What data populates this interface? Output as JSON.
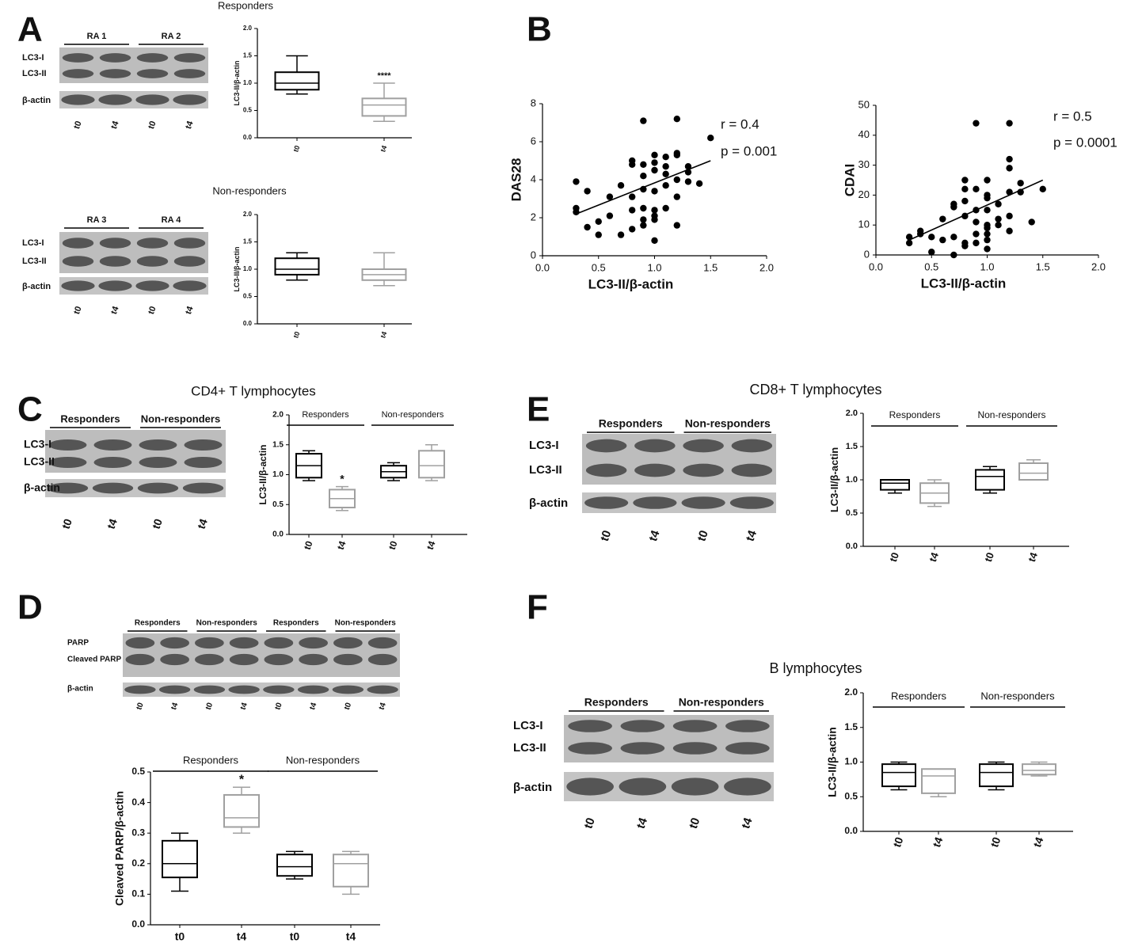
{
  "panel_letters": [
    "A",
    "B",
    "C",
    "D",
    "E",
    "F"
  ],
  "blots": [
    {
      "group_labels": [
        "RA 1",
        "RA 2"
      ],
      "row_labels": [
        "LC3-I",
        "LC3-II",
        "β-actin"
      ],
      "lane_labels": [
        "t0",
        "t4",
        "t0",
        "t4"
      ]
    },
    {
      "group_labels": [
        "RA 3",
        "RA 4"
      ],
      "row_labels": [
        "LC3-I",
        "LC3-II",
        "β-actin"
      ],
      "lane_labels": [
        "t0",
        "t4",
        "t0",
        "t4"
      ]
    },
    {
      "group_labels": [
        "Responders",
        "Non-responders"
      ],
      "row_labels": [
        "LC3-I",
        "LC3-II",
        "β-actin"
      ],
      "lane_labels": [
        "t0",
        "t4",
        "t0",
        "t4"
      ]
    },
    {
      "group_labels": [
        "Responders",
        "Non-responders"
      ],
      "row_labels": [
        "LC3-I",
        "LC3-II",
        "β-actin"
      ],
      "lane_labels": [
        "t0",
        "t4",
        "t0",
        "t4"
      ]
    },
    {
      "group_labels": [
        "Responders",
        "Non-responders",
        "Responders",
        "Non-responders"
      ],
      "row_labels": [
        "PARP",
        "Cleaved PARP",
        "β-actin"
      ],
      "lane_labels": [
        "t0",
        "t4",
        "t0",
        "t4",
        "t0",
        "t4",
        "t0",
        "t4"
      ]
    },
    {
      "group_labels": [
        "Responders",
        "Non-responders"
      ],
      "row_labels": [
        "LC3-I",
        "LC3-II",
        "β-actin"
      ],
      "lane_labels": [
        "t0",
        "t4",
        "t0",
        "t4"
      ]
    }
  ],
  "chart_data": [
    {
      "type": "box",
      "title": "Responders",
      "ylabel": "LC3-II/β-actin",
      "categories": [
        "t0",
        "t4"
      ],
      "boxes": [
        {
          "min": 0.8,
          "q1": 0.88,
          "median": 1.0,
          "q3": 1.2,
          "max": 1.5,
          "color": "#000000"
        },
        {
          "min": 0.3,
          "q1": 0.4,
          "median": 0.6,
          "q3": 0.72,
          "max": 1.0,
          "color": "#a0a0a0",
          "label": "****"
        }
      ],
      "ylim": [
        0,
        2
      ],
      "yticks": [
        {
          "value": 0,
          "label": "0.0"
        },
        {
          "value": 0.5,
          "label": "0.5"
        },
        {
          "value": 1,
          "label": "1.0"
        },
        {
          "value": 1.5,
          "label": "1.5"
        },
        {
          "value": 2,
          "label": "2.0"
        }
      ]
    },
    {
      "type": "box",
      "title": "Non-responders",
      "ylabel": "LC3-II/β-actin",
      "categories": [
        "t0",
        "t4"
      ],
      "boxes": [
        {
          "min": 0.8,
          "q1": 0.9,
          "median": 1.0,
          "q3": 1.2,
          "max": 1.3,
          "color": "#000000"
        },
        {
          "min": 0.7,
          "q1": 0.8,
          "median": 0.9,
          "q3": 1.0,
          "max": 1.3,
          "color": "#a0a0a0"
        }
      ],
      "ylim": [
        0,
        2
      ],
      "yticks": [
        {
          "value": 0,
          "label": "0.0"
        },
        {
          "value": 0.5,
          "label": "0.5"
        },
        {
          "value": 1,
          "label": "1.0"
        },
        {
          "value": 1.5,
          "label": "1.5"
        },
        {
          "value": 2,
          "label": "2.0"
        }
      ]
    },
    {
      "type": "scatter",
      "xlabel": "LC3-II/β-actin",
      "ylabel": "DAS28",
      "color": "#000000",
      "annotations": [
        "r = 0.4",
        "p = 0.001"
      ],
      "x": [
        0.3,
        0.3,
        0.3,
        0.4,
        0.4,
        0.5,
        0.5,
        0.6,
        0.6,
        0.7,
        0.7,
        0.8,
        0.8,
        0.8,
        0.8,
        0.8,
        0.9,
        0.9,
        0.9,
        0.9,
        0.9,
        0.9,
        0.9,
        1.0,
        1.0,
        1.0,
        1.0,
        1.0,
        1.0,
        1.0,
        1.0,
        1.1,
        1.1,
        1.1,
        1.1,
        1.1,
        1.2,
        1.2,
        1.2,
        1.2,
        1.2,
        1.2,
        1.3,
        1.3,
        1.3,
        1.4,
        1.5
      ],
      "values": [
        3.9,
        2.5,
        2.3,
        3.4,
        1.5,
        1.8,
        1.1,
        3.1,
        2.1,
        3.7,
        1.1,
        3.1,
        2.4,
        1.4,
        4.8,
        5.0,
        4.2,
        3.5,
        2.5,
        1.9,
        1.6,
        7.1,
        4.8,
        3.4,
        2.4,
        2.1,
        1.9,
        0.8,
        5.3,
        4.9,
        4.5,
        3.7,
        4.7,
        4.3,
        2.5,
        5.2,
        3.1,
        5.3,
        5.4,
        4.0,
        1.6,
        7.2,
        4.4,
        3.9,
        4.7,
        3.8,
        6.2
      ],
      "fit": {
        "x": [
          0.3,
          1.5
        ],
        "values": [
          2.2,
          5.0
        ]
      },
      "xlim": [
        0,
        2
      ],
      "xticks": [
        {
          "value": 0,
          "label": "0.0"
        },
        {
          "value": 0.5,
          "label": "0.5"
        },
        {
          "value": 1,
          "label": "1.0"
        },
        {
          "value": 1.5,
          "label": "1.5"
        },
        {
          "value": 2,
          "label": "2.0"
        }
      ],
      "ylim": [
        0,
        8
      ],
      "yticks": [
        0,
        2,
        4,
        6,
        8
      ]
    },
    {
      "type": "scatter",
      "xlabel": "LC3-II/β-actin",
      "ylabel": "CDAI",
      "color": "#000000",
      "annotations": [
        "r = 0.5",
        "p = 0.0001"
      ],
      "x": [
        0.3,
        0.3,
        0.4,
        0.4,
        0.5,
        0.5,
        0.6,
        0.6,
        0.7,
        0.7,
        0.7,
        0.7,
        0.8,
        0.8,
        0.8,
        0.8,
        0.8,
        0.8,
        0.9,
        0.9,
        0.9,
        0.9,
        0.9,
        0.9,
        1.0,
        1.0,
        1.0,
        1.0,
        1.0,
        1.0,
        1.0,
        1.0,
        1.0,
        1.1,
        1.1,
        1.1,
        1.2,
        1.2,
        1.2,
        1.2,
        1.2,
        1.2,
        1.3,
        1.3,
        1.4,
        1.5
      ],
      "values": [
        6,
        4,
        8,
        7,
        6,
        1,
        12,
        5,
        17,
        16,
        6,
        0,
        25,
        22,
        18,
        13,
        4,
        3,
        44,
        22,
        15,
        11,
        7,
        4,
        25,
        20,
        19,
        15,
        10,
        9,
        7,
        5,
        2,
        17,
        12,
        10,
        44,
        32,
        29,
        21,
        13,
        8,
        24,
        21,
        11,
        22
      ],
      "fit": {
        "x": [
          0.3,
          1.5
        ],
        "values": [
          5,
          25
        ]
      },
      "xlim": [
        0,
        2
      ],
      "xticks": [
        {
          "value": 0,
          "label": "0.0"
        },
        {
          "value": 0.5,
          "label": "0.5"
        },
        {
          "value": 1,
          "label": "1.0"
        },
        {
          "value": 1.5,
          "label": "1.5"
        },
        {
          "value": 2,
          "label": "2.0"
        }
      ],
      "ylim": [
        0,
        50
      ],
      "yticks": [
        0,
        10,
        20,
        30,
        40,
        50
      ]
    },
    {
      "type": "box",
      "title": "CD4+ T lymphocytes",
      "ylabel": "LC3-II/β-actin",
      "groups": [
        "Responders",
        "Non-responders"
      ],
      "categories": [
        "t0",
        "t4",
        "t0",
        "t4"
      ],
      "boxes": [
        {
          "min": 0.9,
          "q1": 0.95,
          "median": 1.15,
          "q3": 1.35,
          "max": 1.4,
          "color": "#000000"
        },
        {
          "min": 0.4,
          "q1": 0.45,
          "median": 0.6,
          "q3": 0.75,
          "max": 0.8,
          "color": "#a0a0a0",
          "label": "*"
        },
        {
          "min": 0.9,
          "q1": 0.95,
          "median": 1.05,
          "q3": 1.15,
          "max": 1.2,
          "color": "#000000"
        },
        {
          "min": 0.9,
          "q1": 0.95,
          "median": 1.15,
          "q3": 1.4,
          "max": 1.5,
          "color": "#a0a0a0"
        }
      ],
      "ylim": [
        0,
        2
      ],
      "yticks": [
        {
          "value": 0,
          "label": "0.0"
        },
        {
          "value": 0.5,
          "label": "0.5"
        },
        {
          "value": 1,
          "label": "1.0"
        },
        {
          "value": 1.5,
          "label": "1.5"
        },
        {
          "value": 2,
          "label": "2.0"
        }
      ]
    },
    {
      "type": "box",
      "title": "CD8+ T lymphocytes",
      "ylabel": "LC3-II/β-actin",
      "groups": [
        "Responders",
        "Non-responders"
      ],
      "categories": [
        "t0",
        "t4",
        "t0",
        "t4"
      ],
      "boxes": [
        {
          "min": 0.8,
          "q1": 0.85,
          "median": 0.95,
          "q3": 1.0,
          "max": 1.0,
          "color": "#000000"
        },
        {
          "min": 0.6,
          "q1": 0.65,
          "median": 0.8,
          "q3": 0.95,
          "max": 1.0,
          "color": "#a0a0a0"
        },
        {
          "min": 0.8,
          "q1": 0.85,
          "median": 1.05,
          "q3": 1.15,
          "max": 1.2,
          "color": "#000000"
        },
        {
          "min": 1.0,
          "q1": 1.0,
          "median": 1.1,
          "q3": 1.25,
          "max": 1.3,
          "color": "#a0a0a0"
        }
      ],
      "ylim": [
        0,
        2
      ],
      "yticks": [
        {
          "value": 0,
          "label": "0.0"
        },
        {
          "value": 0.5,
          "label": "0.5"
        },
        {
          "value": 1,
          "label": "1.0"
        },
        {
          "value": 1.5,
          "label": "1.5"
        },
        {
          "value": 2,
          "label": "2.0"
        }
      ]
    },
    {
      "type": "box",
      "ylabel": "Cleaved PARP/β-actin",
      "groups": [
        "Responders",
        "Non-responders"
      ],
      "categories": [
        "t0",
        "t4",
        "t0",
        "t4"
      ],
      "boxes": [
        {
          "min": 0.11,
          "q1": 0.155,
          "median": 0.2,
          "q3": 0.275,
          "max": 0.3,
          "color": "#000000"
        },
        {
          "min": 0.3,
          "q1": 0.32,
          "median": 0.35,
          "q3": 0.425,
          "max": 0.45,
          "color": "#a0a0a0",
          "label": "*"
        },
        {
          "min": 0.15,
          "q1": 0.16,
          "median": 0.19,
          "q3": 0.23,
          "max": 0.24,
          "color": "#000000"
        },
        {
          "min": 0.1,
          "q1": 0.125,
          "median": 0.2,
          "q3": 0.23,
          "max": 0.24,
          "color": "#a0a0a0"
        }
      ],
      "ylim": [
        0,
        0.5
      ],
      "yticks": [
        {
          "value": 0,
          "label": "0.0"
        },
        0.1,
        0.2,
        0.3,
        0.4,
        0.5
      ]
    },
    {
      "type": "box",
      "title": "B lymphocytes",
      "ylabel": "LC3-II/β-actin",
      "groups": [
        "Responders",
        "Non-responders"
      ],
      "categories": [
        "t0",
        "t4",
        "t0",
        "t4"
      ],
      "boxes": [
        {
          "min": 0.6,
          "q1": 0.65,
          "median": 0.85,
          "q3": 0.97,
          "max": 1.0,
          "color": "#000000"
        },
        {
          "min": 0.5,
          "q1": 0.55,
          "median": 0.8,
          "q3": 0.9,
          "max": 0.9,
          "color": "#a0a0a0"
        },
        {
          "min": 0.6,
          "q1": 0.65,
          "median": 0.85,
          "q3": 0.97,
          "max": 1.0,
          "color": "#000000"
        },
        {
          "min": 0.8,
          "q1": 0.82,
          "median": 0.88,
          "q3": 0.97,
          "max": 1.0,
          "color": "#a0a0a0"
        }
      ],
      "ylim": [
        0,
        2
      ],
      "yticks": [
        {
          "value": 0,
          "label": "0.0"
        },
        {
          "value": 0.5,
          "label": "0.5"
        },
        {
          "value": 1,
          "label": "1.0"
        },
        {
          "value": 1.5,
          "label": "1.5"
        },
        {
          "value": 2,
          "label": "2.0"
        }
      ]
    }
  ]
}
